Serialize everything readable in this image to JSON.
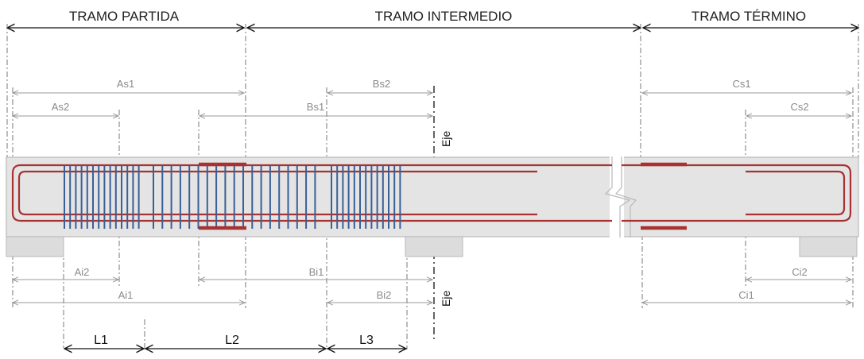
{
  "sections": {
    "partida": "TRAMO PARTIDA",
    "intermedio": "TRAMO INTERMEDIO",
    "termino": "TRAMO TÉRMINO"
  },
  "dimensions": {
    "as1": "As1",
    "as2": "As2",
    "bs1": "Bs1",
    "bs2": "Bs2",
    "cs1": "Cs1",
    "cs2": "Cs2",
    "ai1": "Ai1",
    "ai2": "Ai2",
    "bi1": "Bi1",
    "bi2": "Bi2",
    "ci1": "Ci1",
    "ci2": "Ci2",
    "l1": "L1",
    "l2": "L2",
    "l3": "L3"
  },
  "axis": {
    "top": "Eje",
    "bottom": "Eje"
  },
  "colors": {
    "rebar": "#a83232",
    "stirrup": "#3a5f96",
    "beam": "#e4e4e4",
    "support": "#dcdcdc",
    "dimension": "#9a9a9a"
  }
}
